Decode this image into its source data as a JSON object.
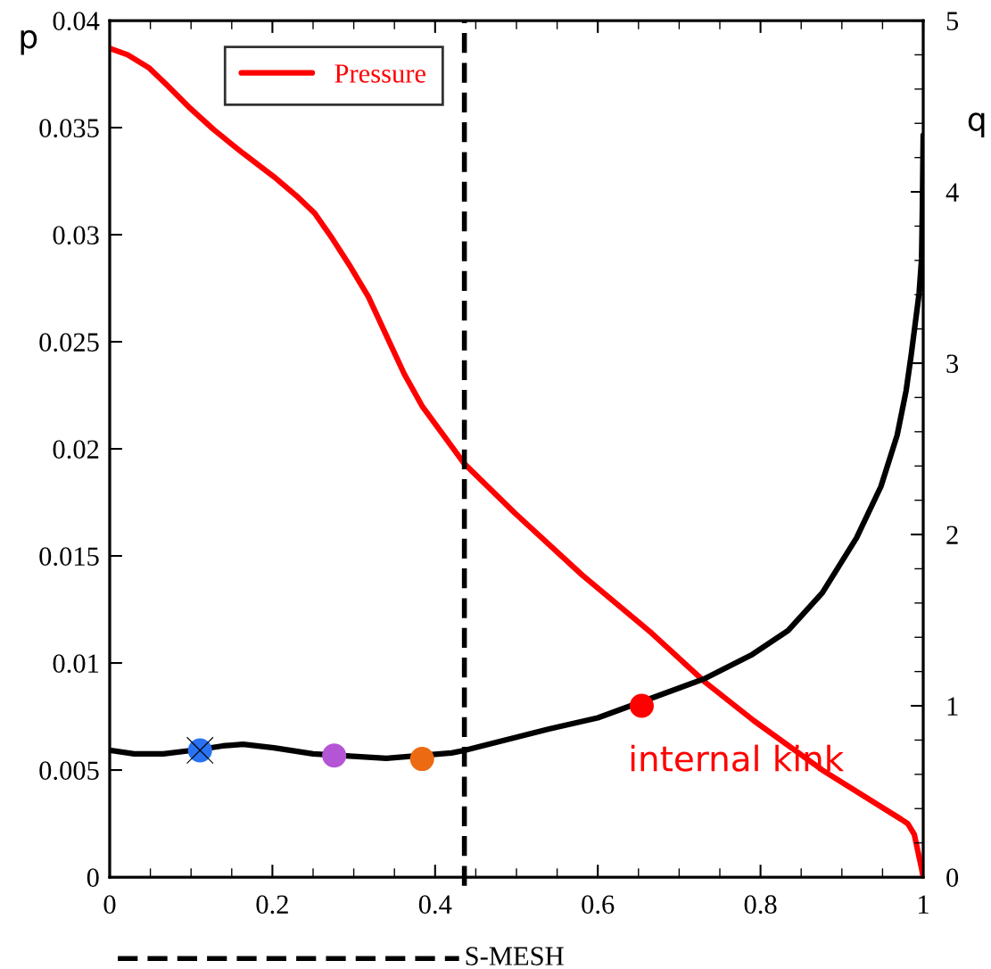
{
  "chart_data": {
    "type": "line",
    "ylabel": "p",
    "y2label": "q",
    "xlim": [
      0,
      1
    ],
    "xticks": [
      0,
      0.2,
      0.4,
      0.6,
      0.8,
      1
    ],
    "ylim": [
      0,
      0.04
    ],
    "yticks": [
      0,
      0.005,
      0.01,
      0.015,
      0.02,
      0.025,
      0.03,
      0.035,
      0.04
    ],
    "y2lim": [
      0,
      5
    ],
    "y2ticks": [
      0,
      1,
      2,
      3,
      4,
      5
    ],
    "legend": "top left",
    "grid": false,
    "line_style": "solid",
    "series": [
      {
        "name": "Pressure",
        "color": "#ff0000",
        "axis": "y",
        "x": [
          0,
          0.022,
          0.048,
          0.07,
          0.099,
          0.128,
          0.164,
          0.202,
          0.23,
          0.252,
          0.274,
          0.296,
          0.318,
          0.34,
          0.362,
          0.384,
          0.413,
          0.436,
          0.498,
          0.581,
          0.666,
          0.732,
          0.792,
          0.876,
          0.973,
          0.981,
          0.989,
          0.998,
          1.0
        ],
        "values": [
          0.0387,
          0.0384,
          0.0378,
          0.037,
          0.0359,
          0.0349,
          0.0338,
          0.0327,
          0.0318,
          0.031,
          0.0298,
          0.0285,
          0.0271,
          0.0253,
          0.0235,
          0.022,
          0.0205,
          0.0193,
          0.017,
          0.0141,
          0.0114,
          0.0091,
          0.0073,
          0.005,
          0.0027,
          0.0025,
          0.002,
          0.0004,
          0
        ]
      },
      {
        "color": "#000000",
        "axis": "y2",
        "x": [
          0,
          0.03,
          0.066,
          0.11,
          0.139,
          0.164,
          0.202,
          0.25,
          0.34,
          0.42,
          0.436,
          0.54,
          0.6,
          0.732,
          0.79,
          0.834,
          0.876,
          0.918,
          0.948,
          0.968,
          0.979,
          0.985,
          0.995,
          0.998,
          0.999,
          1.0
        ],
        "values": [
          0.74,
          0.72,
          0.72,
          0.745,
          0.766,
          0.776,
          0.755,
          0.72,
          0.693,
          0.725,
          0.74,
          0.865,
          0.93,
          1.16,
          1.3,
          1.44,
          1.66,
          1.98,
          2.28,
          2.58,
          2.84,
          3.04,
          3.41,
          3.61,
          3.91,
          4.33
        ]
      },
      {
        "type": "scatter",
        "axis": "y2",
        "marker": "circle",
        "x": [
          0.111,
          0.276,
          0.384,
          0.654
        ],
        "values": [
          0.74,
          0.71,
          0.69,
          1.0
        ],
        "colors": [
          "#2a72f0",
          "#b455d6",
          "#ec6a12",
          "#ff0000"
        ]
      },
      {
        "type": "scatter",
        "axis": "y2",
        "marker": "cross",
        "color": "#000000",
        "x": [
          0.111
        ],
        "values": [
          0.74
        ]
      }
    ],
    "ref_lines": [
      {
        "axis": "x",
        "value": 0.436,
        "label": "S-MESH",
        "color": "#000000",
        "line_style": "dashed"
      }
    ],
    "annotations": [
      "internal kink"
    ]
  }
}
